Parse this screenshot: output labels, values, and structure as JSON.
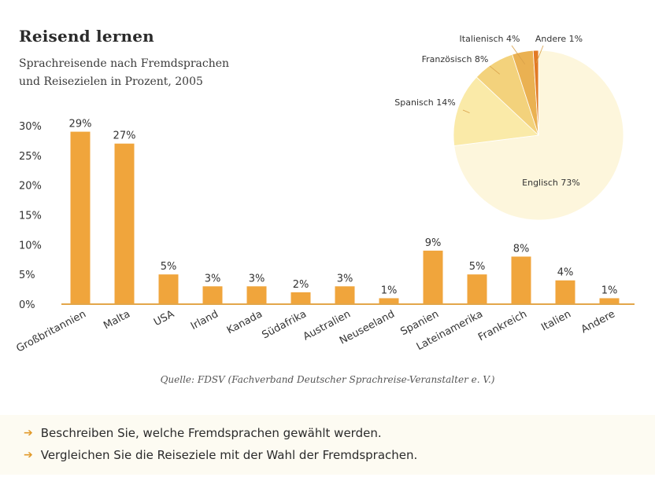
{
  "title": "Reisend lernen",
  "subtitle_lines": [
    "Sprachreisende nach Fremdsprachen",
    "und Reisezielen in Prozent, 2005"
  ],
  "source": "Quelle: FDSV (Fachverband Deutscher Sprachreise-Veranstalter e. V.)",
  "tasks": [
    "Beschreiben Sie, welche Fremdsprachen gewählt werden.",
    "Vergleichen Sie die Reiseziele mit der Wahl der Fremdsprachen."
  ],
  "colors": {
    "bar": "#f0a53c",
    "axis": "#e3a64a",
    "text": "#333333",
    "arrow": "#e29a2b"
  },
  "chart_data": [
    {
      "type": "bar",
      "title": "Reisend lernen",
      "ylim": [
        0,
        30
      ],
      "yticks": [
        "0%",
        "5%",
        "10%",
        "15%",
        "20%",
        "25%",
        "30%"
      ],
      "ytick_values": [
        0,
        5,
        10,
        15,
        20,
        25,
        30
      ],
      "categories": [
        "Großbritannien",
        "Malta",
        "USA",
        "Irland",
        "Kanada",
        "Südafrika",
        "Australien",
        "Neuseeland",
        "Spanien",
        "Lateinamerika",
        "Frankreich",
        "Italien",
        "Andere"
      ],
      "values": [
        29,
        27,
        5,
        3,
        3,
        2,
        3,
        1,
        9,
        5,
        8,
        4,
        1
      ],
      "labels": [
        "29%",
        "27%",
        "5%",
        "3%",
        "3%",
        "2%",
        "3%",
        "1%",
        "9%",
        "5%",
        "8%",
        "4%",
        "1%"
      ]
    },
    {
      "type": "pie",
      "slices": [
        {
          "label": "Englisch",
          "value": 73,
          "text": "Englisch 73%",
          "color": "#fdf6dc"
        },
        {
          "label": "Spanisch",
          "value": 14,
          "text": "Spanisch 14%",
          "color": "#faeaa8"
        },
        {
          "label": "Französisch",
          "value": 8,
          "text": "Französisch 8%",
          "color": "#f3d27c"
        },
        {
          "label": "Italienisch",
          "value": 4,
          "text": "Italienisch 4%",
          "color": "#eab152"
        },
        {
          "label": "Andere",
          "value": 1,
          "text": "Andere 1%",
          "color": "#e27a25"
        }
      ]
    }
  ]
}
